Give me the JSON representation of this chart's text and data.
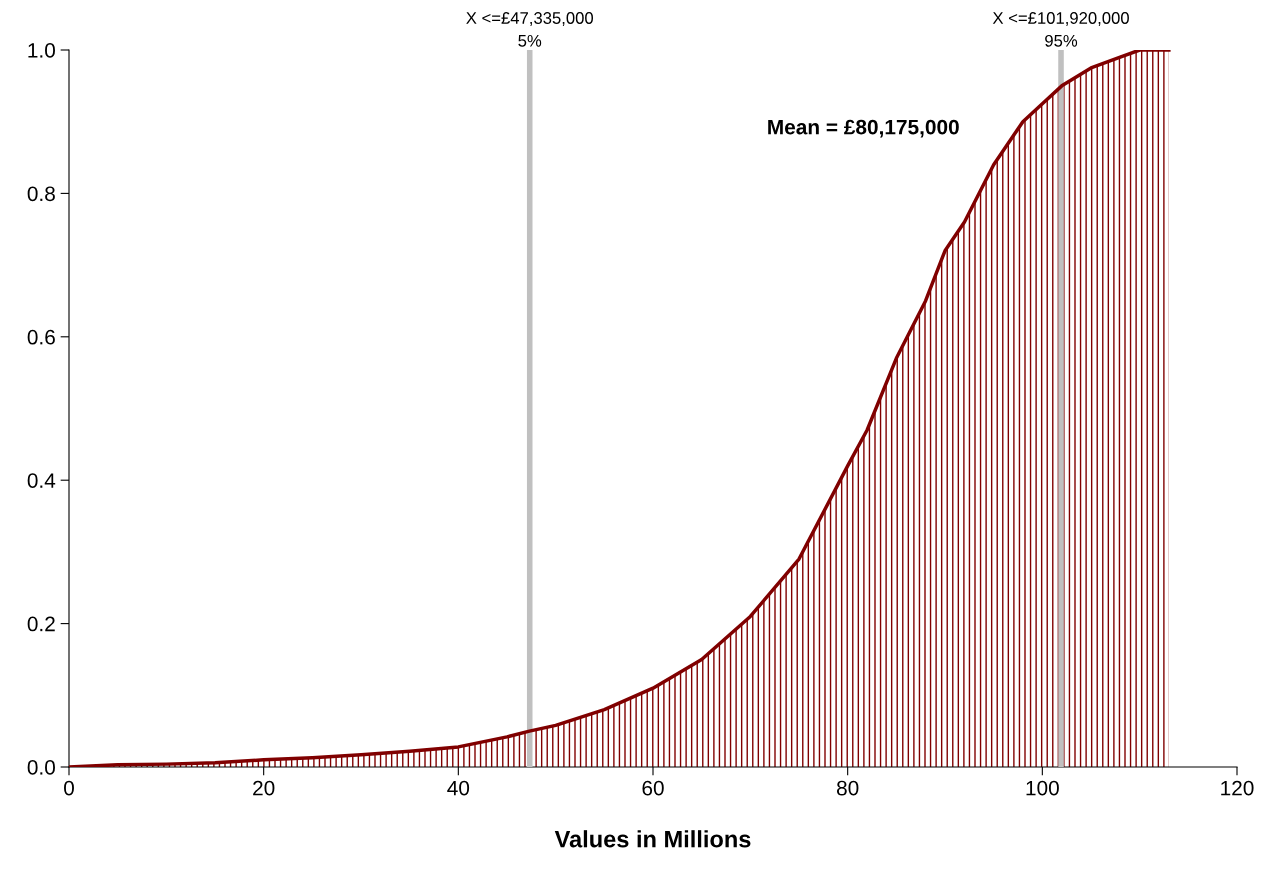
{
  "chart_data": {
    "type": "area",
    "xlabel": "Values in Millions",
    "x": [
      0,
      5,
      10,
      15,
      20,
      25,
      30,
      35,
      40,
      45,
      47.3,
      50,
      55,
      60,
      65,
      70,
      75,
      80,
      82,
      85,
      88,
      90,
      92,
      95,
      98,
      100,
      102,
      105,
      108,
      110,
      113
    ],
    "series": [
      {
        "color": "#800000",
        "values": [
          0,
          0.003,
          0.004,
          0.006,
          0.01,
          0.013,
          0.017,
          0.022,
          0.028,
          0.042,
          0.05,
          0.058,
          0.08,
          0.11,
          0.15,
          0.21,
          0.29,
          0.42,
          0.47,
          0.57,
          0.65,
          0.72,
          0.76,
          0.84,
          0.9,
          0.925,
          0.95,
          0.975,
          0.99,
          1.0,
          1.0
        ]
      }
    ],
    "xlim": [
      0,
      120
    ],
    "xticks": [
      0,
      20,
      40,
      60,
      80,
      100,
      120
    ],
    "ylim": [
      0,
      1.0
    ],
    "yticks": [
      {
        "value": 0,
        "label": "0.0"
      },
      {
        "value": 0.2,
        "label": "0.2"
      },
      {
        "value": 0.4,
        "label": "0.4"
      },
      {
        "value": 0.6,
        "label": "0.6"
      },
      {
        "value": 0.8,
        "label": "0.8"
      },
      {
        "value": 1.0,
        "label": "1.0"
      }
    ],
    "ref_lines": [
      {
        "axis": "x",
        "value": 47.335,
        "label": "X <=£47,335,000\n5%",
        "color": "#c0c0c0"
      },
      {
        "axis": "x",
        "value": 101.92,
        "label": "X <=£101,920,000\n95%",
        "color": "#c0c0c0"
      }
    ],
    "annotations": [
      "Mean = £80,175,000"
    ],
    "grid": false,
    "legend": false
  }
}
